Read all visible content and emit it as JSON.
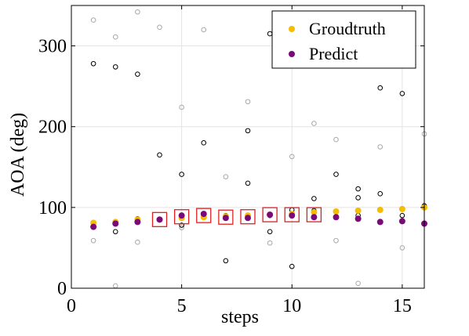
{
  "chart_data": {
    "type": "scatter",
    "title": "",
    "xlabel": "steps",
    "ylabel": "AOA (deg)",
    "xlim": [
      0,
      16
    ],
    "ylim": [
      0,
      350
    ],
    "xticks": [
      0,
      5,
      10,
      15
    ],
    "yticks": [
      0,
      100,
      200,
      300
    ],
    "grid": true,
    "legend_position": "top-right",
    "colors": {
      "groundtruth": "#F5BC00",
      "predict": "#7A0A7A",
      "highlight_box": "#E02020",
      "dark_circle": "#000000",
      "light_circle": "#A8A8A8"
    },
    "series": [
      {
        "name": "Groudtruth",
        "x": [
          1,
          2,
          3,
          4,
          5,
          6,
          7,
          8,
          9,
          10,
          11,
          12,
          13,
          14,
          15,
          16
        ],
        "y": [
          81,
          82,
          85,
          85,
          87,
          88,
          89,
          90,
          91,
          92,
          94,
          95,
          96,
          97,
          98,
          100
        ]
      },
      {
        "name": "Predict",
        "x": [
          1,
          2,
          3,
          4,
          5,
          6,
          7,
          8,
          9,
          10,
          11,
          12,
          13,
          14,
          15,
          16
        ],
        "y": [
          76,
          80,
          82,
          85,
          90,
          92,
          87,
          87,
          91,
          90,
          88,
          88,
          86,
          82,
          83,
          80
        ]
      }
    ],
    "dark_circles": {
      "x": [
        1,
        1,
        2,
        2,
        2,
        3,
        3,
        4,
        4,
        5,
        5,
        6,
        6,
        7,
        7,
        8,
        8,
        8,
        9,
        9,
        9,
        10,
        10,
        11,
        11,
        11,
        12,
        12,
        13,
        13,
        13,
        13,
        14,
        14,
        15,
        15,
        16,
        16
      ],
      "y": [
        278,
        76,
        274,
        70,
        80,
        265,
        86,
        165,
        85,
        141,
        78,
        180,
        88,
        34,
        90,
        195,
        130,
        88,
        315,
        70,
        90,
        27,
        97,
        111,
        96,
        88,
        141,
        88,
        123,
        112,
        90,
        86,
        248,
        117,
        241,
        90,
        102,
        102
      ]
    },
    "light_circles": {
      "x": [
        1,
        1,
        2,
        2,
        3,
        3,
        4,
        5,
        5,
        6,
        7,
        8,
        9,
        10,
        11,
        12,
        12,
        13,
        14,
        15,
        16
      ],
      "y": [
        332,
        59,
        311,
        3,
        342,
        57,
        323,
        224,
        75,
        320,
        138,
        231,
        56,
        163,
        204,
        184,
        59,
        6,
        175,
        50,
        191
      ]
    },
    "highlight_steps": [
      4,
      5,
      6,
      7,
      8,
      9,
      10,
      11
    ]
  }
}
